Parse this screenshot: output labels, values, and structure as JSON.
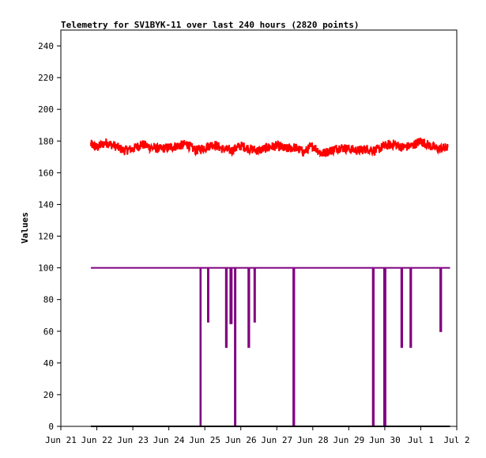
{
  "chart_data": {
    "type": "line",
    "title": "Telemetry for SV1BYK-11 over last 240 hours (2820 points)",
    "xlabel": "",
    "ylabel": "Values",
    "x_axis": {
      "kind": "date",
      "start": "2024-06-21",
      "end": "2024-07-02",
      "tick_dates": [
        "2024-06-21",
        "2024-06-22",
        "2024-06-23",
        "2024-06-24",
        "2024-06-25",
        "2024-06-26",
        "2024-06-27",
        "2024-06-28",
        "2024-06-29",
        "2024-06-30",
        "2024-07-01",
        "2024-07-02"
      ],
      "tick_labels": [
        "Jun 21",
        "Jun 22",
        "Jun 23",
        "Jun 24",
        "Jun 25",
        "Jun 26",
        "Jun 27",
        "Jun 28",
        "Jun 29",
        "Jun 30",
        "Jul 1",
        "Jul 2"
      ]
    },
    "y_axis": {
      "min": 0,
      "max": 250,
      "ticks": [
        0,
        20,
        40,
        60,
        80,
        100,
        120,
        140,
        160,
        180,
        200,
        220,
        240
      ]
    },
    "grid": false,
    "series": [
      {
        "color": "#ff0000",
        "x": [
          "2024-06-21T20:00",
          "2024-06-22T00:00",
          "2024-06-22T06:00",
          "2024-06-22T12:00",
          "2024-06-22T18:00",
          "2024-06-23T00:00",
          "2024-06-23T06:00",
          "2024-06-23T12:00",
          "2024-06-23T18:00",
          "2024-06-24T00:00",
          "2024-06-24T06:00",
          "2024-06-24T12:00",
          "2024-06-24T18:00",
          "2024-06-25T00:00",
          "2024-06-25T06:00",
          "2024-06-25T12:00",
          "2024-06-25T18:00",
          "2024-06-26T00:00",
          "2024-06-26T06:00",
          "2024-06-26T12:00",
          "2024-06-26T18:00",
          "2024-06-27T00:00",
          "2024-06-27T06:00",
          "2024-06-27T12:00",
          "2024-06-27T18:00",
          "2024-06-28T00:00",
          "2024-06-28T06:00",
          "2024-06-28T12:00",
          "2024-06-28T18:00",
          "2024-06-29T00:00",
          "2024-06-29T06:00",
          "2024-06-29T12:00",
          "2024-06-29T18:00",
          "2024-06-30T00:00",
          "2024-06-30T06:00",
          "2024-06-30T12:00",
          "2024-06-30T18:00",
          "2024-07-01T00:00",
          "2024-07-01T06:00",
          "2024-07-01T12:00",
          "2024-07-01T18:00"
        ],
        "values": [
          178,
          176,
          179,
          177,
          174,
          175,
          178,
          176,
          175,
          176,
          177,
          178,
          174,
          176,
          178,
          175,
          174,
          177,
          175,
          174,
          176,
          177,
          175,
          176,
          173,
          177,
          172,
          174,
          176,
          175,
          174,
          175,
          174,
          177,
          178,
          176,
          177,
          180,
          177,
          175,
          176
        ]
      },
      {
        "color": "#800080",
        "x": [
          "2024-06-21T20:00",
          "2024-06-24T21:00",
          "2024-06-24T21:00",
          "2024-06-24T21:20",
          "2024-06-24T21:20",
          "2024-06-25T02:00",
          "2024-06-25T02:00",
          "2024-06-25T02:30",
          "2024-06-25T02:30",
          "2024-06-25T14:00",
          "2024-06-25T14:00",
          "2024-06-25T14:40",
          "2024-06-25T14:40",
          "2024-06-25T17:00",
          "2024-06-25T17:00",
          "2024-06-25T18:00",
          "2024-06-25T18:00",
          "2024-06-25T20:00",
          "2024-06-25T20:00",
          "2024-06-25T20:30",
          "2024-06-25T20:30",
          "2024-06-26T05:00",
          "2024-06-26T05:00",
          "2024-06-26T05:40",
          "2024-06-26T05:40",
          "2024-06-26T09:00",
          "2024-06-26T09:00",
          "2024-06-26T09:30",
          "2024-06-26T09:30",
          "2024-06-27T11:00",
          "2024-06-27T11:00",
          "2024-06-27T11:40",
          "2024-06-27T11:40",
          "2024-06-29T16:00",
          "2024-06-29T16:00",
          "2024-06-29T16:40",
          "2024-06-29T16:40",
          "2024-06-29T23:30",
          "2024-06-29T23:30",
          "2024-06-30T00:30",
          "2024-06-30T00:30",
          "2024-06-30T11:00",
          "2024-06-30T11:00",
          "2024-06-30T11:40",
          "2024-06-30T11:40",
          "2024-06-30T17:00",
          "2024-06-30T17:00",
          "2024-06-30T17:40",
          "2024-06-30T17:40",
          "2024-07-01T13:00",
          "2024-07-01T13:00",
          "2024-07-01T13:40",
          "2024-07-01T13:40",
          "2024-07-01T19:30"
        ],
        "values": [
          100,
          100,
          0,
          0,
          100,
          100,
          66,
          66,
          100,
          100,
          50,
          50,
          100,
          100,
          65,
          65,
          100,
          100,
          0,
          0,
          100,
          100,
          50,
          50,
          100,
          100,
          66,
          66,
          100,
          100,
          0,
          0,
          100,
          100,
          0,
          0,
          100,
          100,
          0,
          0,
          100,
          100,
          50,
          50,
          100,
          100,
          50,
          50,
          100,
          100,
          60,
          60,
          100,
          100
        ]
      },
      {
        "color": "#000000",
        "x": [
          "2024-06-21T20:00",
          "2024-07-01T19:30"
        ],
        "values": [
          0,
          0
        ]
      }
    ]
  }
}
